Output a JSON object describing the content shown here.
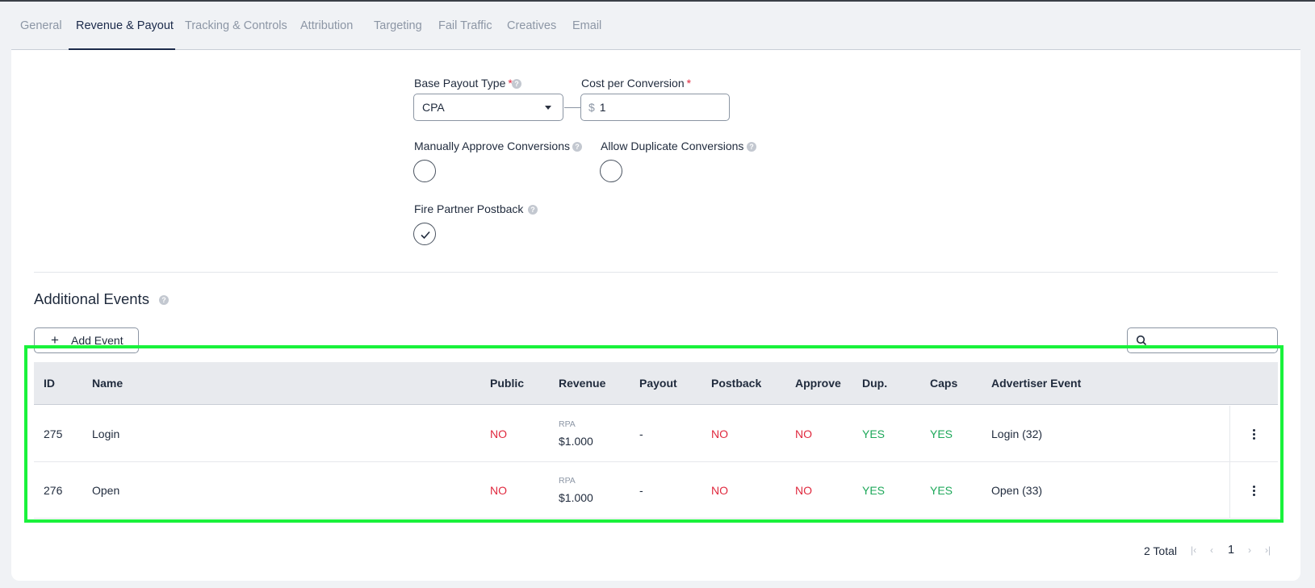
{
  "tabs": [
    {
      "label": "General",
      "active": false
    },
    {
      "label": "Revenue & Payout",
      "active": true
    },
    {
      "label": "Tracking & Controls",
      "active": false
    },
    {
      "label": "Attribution",
      "active": false
    },
    {
      "label": "Targeting",
      "active": false
    },
    {
      "label": "Fail Traffic",
      "active": false
    },
    {
      "label": "Creatives",
      "active": false
    },
    {
      "label": "Email",
      "active": false
    }
  ],
  "form": {
    "base_payout_type": {
      "label": "Base Payout Type",
      "required_mark": "*",
      "value": "CPA"
    },
    "cost_per_conversion": {
      "label": "Cost per Conversion",
      "required_mark": "*",
      "currency": "$",
      "value": "1"
    },
    "manually_approve": {
      "label": "Manually Approve Conversions",
      "checked": false
    },
    "allow_duplicate": {
      "label": "Allow Duplicate Conversions",
      "checked": false
    },
    "fire_partner_postback": {
      "label": "Fire Partner Postback",
      "checked": true
    },
    "help_glyph": "?"
  },
  "additional_events": {
    "title": "Additional Events",
    "add_button_label": "Add Event",
    "add_icon_glyph": "+",
    "search_placeholder": ""
  },
  "table": {
    "headers": {
      "id": "ID",
      "name": "Name",
      "public": "Public",
      "revenue": "Revenue",
      "payout": "Payout",
      "postback": "Postback",
      "approve": "Approve",
      "dup": "Dup.",
      "caps": "Caps",
      "advertiser_event": "Advertiser Event"
    },
    "rows": [
      {
        "id": "275",
        "name": "Login",
        "public": "NO",
        "revenue_label": "RPA",
        "revenue_value": "$1.000",
        "payout": "-",
        "postback": "NO",
        "approve": "NO",
        "dup": "YES",
        "caps": "YES",
        "advertiser_event": "Login (32)"
      },
      {
        "id": "276",
        "name": "Open",
        "public": "NO",
        "revenue_label": "RPA",
        "revenue_value": "$1.000",
        "payout": "-",
        "postback": "NO",
        "approve": "NO",
        "dup": "YES",
        "caps": "YES",
        "advertiser_event": "Open (33)"
      }
    ]
  },
  "pagination": {
    "total_text": "2 Total",
    "current_page": "1",
    "first_glyph": "|‹",
    "prev_glyph": "‹",
    "next_glyph": "›",
    "last_glyph": "›|"
  },
  "colors": {
    "no": "#e0293e",
    "yes": "#1ea85a",
    "highlight": "#19f23b",
    "tab_active": "#1b2a4a"
  }
}
